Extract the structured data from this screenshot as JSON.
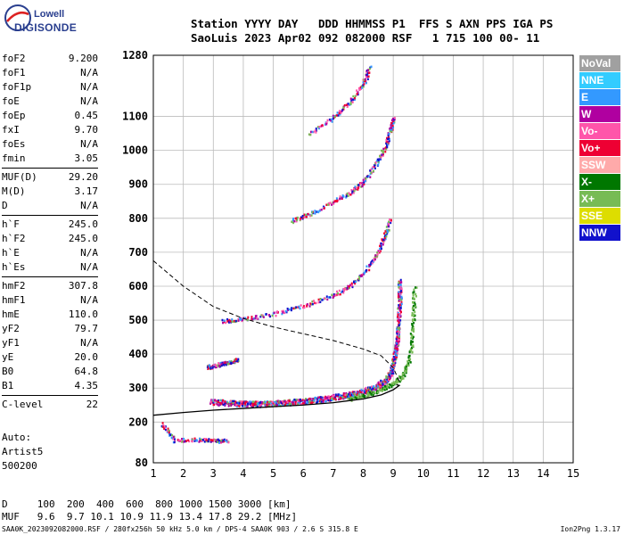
{
  "logo": {
    "line1": "Lowell",
    "line2": "DIGISONDE"
  },
  "header": {
    "line1": "Station YYYY DAY   DDD HHMMSS P1  FFS S AXN PPS IGA PS",
    "line2": "SaoLuis 2023 Apr02 092 082000 RSF   1 715 100 00- 11"
  },
  "params": {
    "group1": [
      {
        "k": "foF2",
        "v": "9.200"
      },
      {
        "k": "foF1",
        "v": "N/A"
      },
      {
        "k": "foF1p",
        "v": "N/A"
      },
      {
        "k": "foE",
        "v": "N/A"
      },
      {
        "k": "foEp",
        "v": "0.45"
      },
      {
        "k": "fxI",
        "v": "9.70"
      },
      {
        "k": "foEs",
        "v": "N/A"
      },
      {
        "k": "fmin",
        "v": "3.05"
      }
    ],
    "group2": [
      {
        "k": "MUF(D)",
        "v": "29.20"
      },
      {
        "k": "M(D)",
        "v": "3.17"
      },
      {
        "k": "D",
        "v": "N/A"
      }
    ],
    "group3": [
      {
        "k": "h`F",
        "v": "245.0"
      },
      {
        "k": "h`F2",
        "v": "245.0"
      },
      {
        "k": "h`E",
        "v": "N/A"
      },
      {
        "k": "h`Es",
        "v": "N/A"
      }
    ],
    "group4": [
      {
        "k": "hmF2",
        "v": "307.8"
      },
      {
        "k": "hmF1",
        "v": "N/A"
      },
      {
        "k": "hmE",
        "v": "110.0"
      },
      {
        "k": "yF2",
        "v": "79.7"
      },
      {
        "k": "yF1",
        "v": "N/A"
      },
      {
        "k": "yE",
        "v": "20.0"
      },
      {
        "k": "B0",
        "v": "64.8"
      },
      {
        "k": "B1",
        "v": "4.35"
      }
    ],
    "group5": [
      {
        "k": "C-level",
        "v": "22"
      }
    ]
  },
  "auto": {
    "l1": "Auto:",
    "l2": "Artist5",
    "l3": "500200"
  },
  "muf_table": {
    "d_line": "D     100  200  400  600  800 1000 1500 3000 [km]",
    "muf_line": "MUF   9.6  9.7 10.1 10.9 11.9 13.4 17.8 29.2 [MHz]"
  },
  "footer": {
    "left": "SAA0K_2023092082000.RSF / 280fx256h 50 kHz 5.0 km / DPS-4 SAA0K 903 / 2.6 S 315.8 E",
    "right": "Ion2Png 1.3.17"
  },
  "legend": [
    {
      "label": "NoVal",
      "color": "#a0a0a0"
    },
    {
      "label": "NNE",
      "color": "#33ccff"
    },
    {
      "label": "E",
      "color": "#3399ff"
    },
    {
      "label": "W",
      "color": "#b000a0"
    },
    {
      "label": "Vo-",
      "color": "#ff55aa"
    },
    {
      "label": "Vo+",
      "color": "#ee0033"
    },
    {
      "label": "SSW",
      "color": "#ffaaaa"
    },
    {
      "label": "X-",
      "color": "#007700"
    },
    {
      "label": "X+",
      "color": "#77bb55"
    },
    {
      "label": "SSE",
      "color": "#dddd00"
    },
    {
      "label": "NNW",
      "color": "#1111cc"
    }
  ],
  "chart_data": {
    "type": "scatter",
    "xlim": [
      1,
      15
    ],
    "ylim": [
      80,
      1280
    ],
    "xticks": [
      "1",
      "2",
      "3",
      "4",
      "5",
      "6",
      "7",
      "8",
      "9",
      "10",
      "11",
      "12",
      "13",
      "14",
      "15"
    ],
    "yticks": [
      {
        "v": 80,
        "label": "80"
      },
      {
        "v": 200,
        "label": "200"
      },
      {
        "v": 300,
        "label": "300"
      },
      {
        "v": 400,
        "label": "400"
      },
      {
        "v": 500,
        "label": "500"
      },
      {
        "v": 600,
        "label": "600"
      },
      {
        "v": 700,
        "label": "700"
      },
      {
        "v": 800,
        "label": "800"
      },
      {
        "v": 900,
        "label": "900"
      },
      {
        "v": 1000,
        "label": "1000"
      },
      {
        "v": 1100,
        "label": "1100"
      },
      {
        "v": 1280,
        "label": "1280"
      }
    ],
    "grid": true,
    "traces": [
      {
        "name": "F2 O-trace",
        "points": [
          [
            2.9,
            262
          ],
          [
            3.5,
            258
          ],
          [
            4.0,
            256
          ],
          [
            4.5,
            255
          ],
          [
            5.0,
            257
          ],
          [
            5.5,
            260
          ],
          [
            6.0,
            263
          ],
          [
            6.5,
            268
          ],
          [
            7.0,
            275
          ],
          [
            7.5,
            283
          ],
          [
            8.0,
            292
          ],
          [
            8.4,
            305
          ],
          [
            8.7,
            322
          ],
          [
            8.9,
            345
          ],
          [
            9.0,
            380
          ],
          [
            9.1,
            430
          ],
          [
            9.15,
            480
          ],
          [
            9.2,
            560
          ],
          [
            9.2,
            620
          ]
        ]
      },
      {
        "name": "F2 X-trace",
        "points": [
          [
            7.5,
            270
          ],
          [
            8.0,
            280
          ],
          [
            8.5,
            295
          ],
          [
            9.0,
            315
          ],
          [
            9.3,
            340
          ],
          [
            9.5,
            380
          ],
          [
            9.6,
            440
          ],
          [
            9.65,
            520
          ],
          [
            9.7,
            600
          ]
        ]
      },
      {
        "name": "2nd hop",
        "points": [
          [
            3.3,
            500
          ],
          [
            4.0,
            505
          ],
          [
            5.0,
            520
          ],
          [
            6.0,
            545
          ],
          [
            7.0,
            575
          ],
          [
            7.5,
            600
          ],
          [
            8.0,
            640
          ],
          [
            8.4,
            690
          ],
          [
            8.7,
            750
          ],
          [
            8.9,
            800
          ]
        ]
      },
      {
        "name": "3rd hop",
        "points": [
          [
            5.6,
            795
          ],
          [
            6.2,
            815
          ],
          [
            7.0,
            850
          ],
          [
            7.6,
            880
          ],
          [
            8.0,
            910
          ],
          [
            8.4,
            960
          ],
          [
            8.7,
            1010
          ],
          [
            8.9,
            1060
          ],
          [
            9.0,
            1100
          ]
        ]
      },
      {
        "name": "4th hop",
        "points": [
          [
            6.2,
            1050
          ],
          [
            7.0,
            1100
          ],
          [
            7.5,
            1140
          ],
          [
            8.0,
            1200
          ],
          [
            8.2,
            1250
          ]
        ]
      },
      {
        "name": "E-layer echoes",
        "points": [
          [
            2.8,
            363
          ],
          [
            3.0,
            368
          ],
          [
            3.3,
            374
          ],
          [
            3.6,
            380
          ],
          [
            3.8,
            385
          ]
        ]
      },
      {
        "name": "Low echoes",
        "points": [
          [
            1.3,
            195
          ],
          [
            1.7,
            148
          ],
          [
            2.5,
            150
          ],
          [
            3.0,
            147
          ],
          [
            3.5,
            146
          ]
        ]
      }
    ],
    "profile": [
      [
        1,
        220
      ],
      [
        2,
        228
      ],
      [
        3,
        235
      ],
      [
        4,
        240
      ],
      [
        5,
        245
      ],
      [
        6,
        250
      ],
      [
        7,
        257
      ],
      [
        8,
        268
      ],
      [
        8.6,
        280
      ],
      [
        9.0,
        295
      ],
      [
        9.2,
        307.8
      ],
      [
        9.1,
        310
      ]
    ],
    "muf_curve": [
      [
        1,
        675
      ],
      [
        2,
        600
      ],
      [
        3,
        540
      ],
      [
        4,
        505
      ],
      [
        5,
        480
      ],
      [
        6,
        460
      ],
      [
        7,
        440
      ],
      [
        8,
        415
      ],
      [
        8.6,
        395
      ],
      [
        9.0,
        360
      ],
      [
        9.2,
        320
      ]
    ]
  }
}
